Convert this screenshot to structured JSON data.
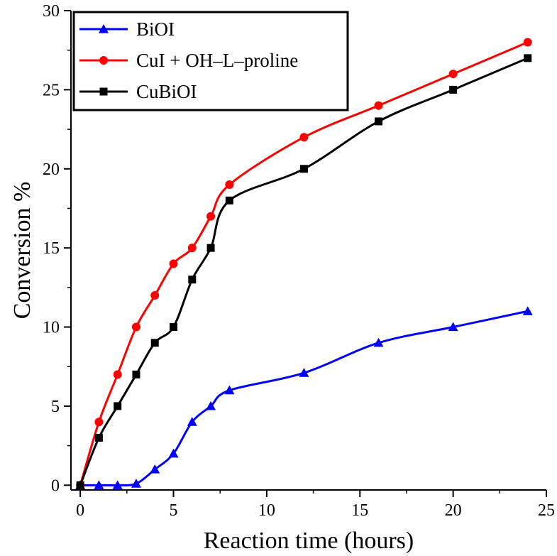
{
  "chart_data": {
    "type": "line",
    "xlabel": "Reaction time (hours)",
    "ylabel": "Conversion %",
    "xlim": [
      -0.5,
      25
    ],
    "ylim": [
      -0.3,
      30
    ],
    "xticks": [
      0,
      5,
      10,
      15,
      20,
      25
    ],
    "yticks": [
      0,
      5,
      10,
      15,
      20,
      25,
      30
    ],
    "xtick_labels": [
      "0",
      "5",
      "10",
      "15",
      "20",
      "25"
    ],
    "ytick_labels": [
      "0",
      "5",
      "10",
      "15",
      "20",
      "25",
      "30"
    ],
    "grid": false,
    "legend_position": "top-left",
    "series": [
      {
        "name": "BiOI",
        "color": "#0000ff",
        "marker": "triangle",
        "x": [
          0,
          1,
          2,
          3,
          4,
          5,
          6,
          7,
          8,
          12,
          16,
          20,
          24
        ],
        "y": [
          0,
          0,
          0,
          0.1,
          1,
          2,
          4,
          5,
          6,
          7.1,
          9,
          10,
          11
        ]
      },
      {
        "name": "CuI + OH–L–proline",
        "color": "#ff0000",
        "marker": "circle",
        "x": [
          0,
          1,
          2,
          3,
          4,
          5,
          6,
          7,
          8,
          12,
          16,
          20,
          24
        ],
        "y": [
          0,
          4,
          7,
          10,
          12,
          14,
          15,
          17,
          19,
          22,
          24,
          26,
          28
        ]
      },
      {
        "name": "CuBiOI",
        "color": "#000000",
        "marker": "square",
        "x": [
          0,
          1,
          2,
          3,
          4,
          5,
          6,
          7,
          8,
          12,
          16,
          20,
          24
        ],
        "y": [
          0,
          3,
          5,
          7,
          9,
          10,
          13,
          15,
          18,
          20,
          23,
          25,
          27
        ]
      }
    ]
  }
}
